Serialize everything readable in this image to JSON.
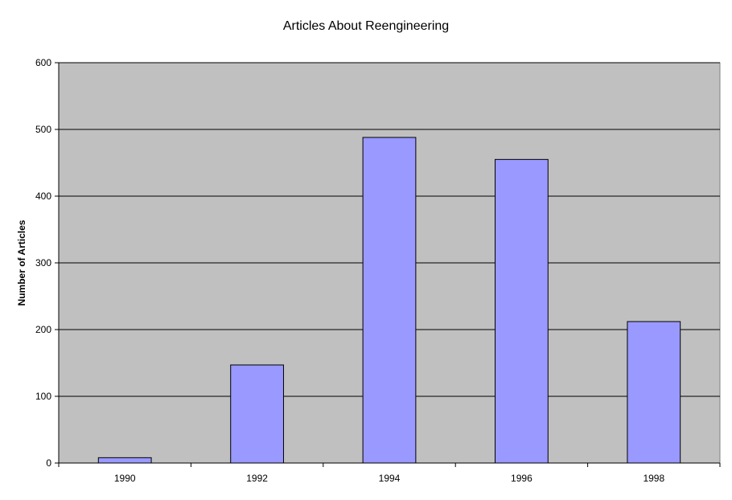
{
  "chart_data": {
    "type": "bar",
    "title": "Articles About Reengineering",
    "xlabel": "",
    "ylabel": "Number of Articles",
    "categories": [
      "1990",
      "1992",
      "1994",
      "1996",
      "1998"
    ],
    "values": [
      8,
      147,
      488,
      455,
      212
    ],
    "ylim": [
      0,
      600
    ],
    "yticks": [
      "0",
      "100",
      "200",
      "300",
      "400",
      "500",
      "600"
    ],
    "grid": true,
    "colors": {
      "plot_background": "#c0c0c0",
      "bar_fill": "#9999ff",
      "bar_stroke": "#000000",
      "gridline": "#000000"
    }
  }
}
